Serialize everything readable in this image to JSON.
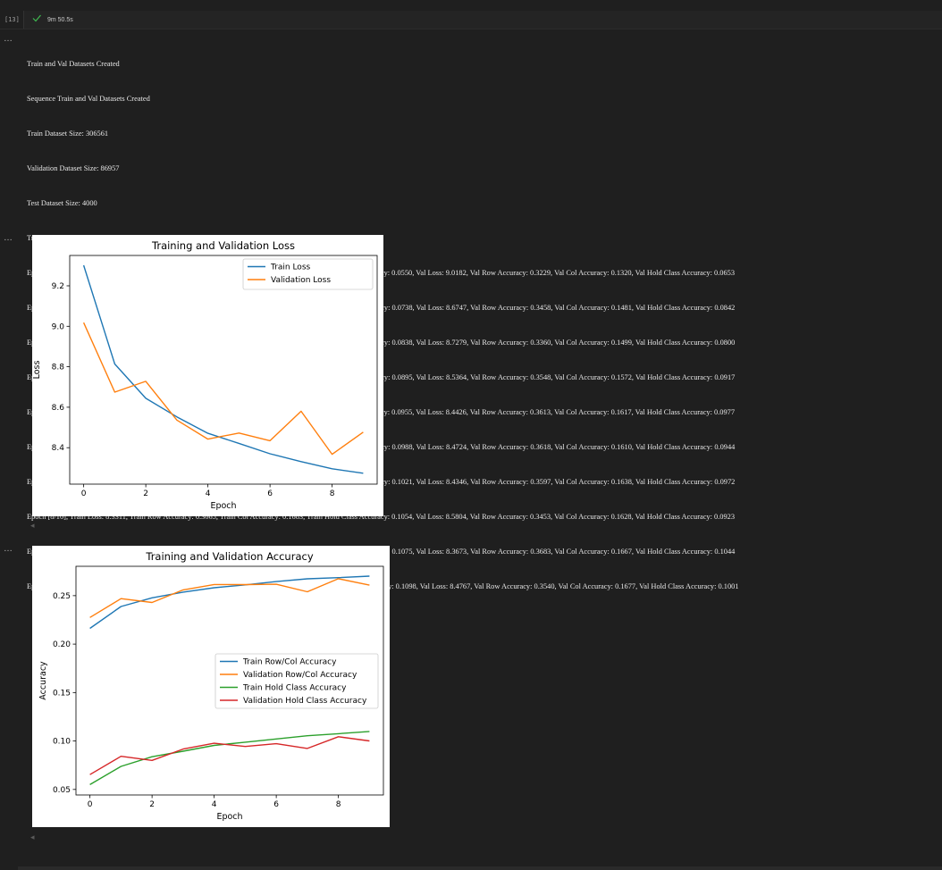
{
  "cell": {
    "execution_count": "[13]",
    "exec_time": "9m 50.5s"
  },
  "log_lines": [
    "Train and Val Datasets Created",
    "Sequence Train and Val Datasets Created",
    "Train Dataset Size: 306561",
    "Validation Dataset Size: 86957",
    "Test Dataset Size: 4000",
    "Train and Val Loaders Created",
    "Epoch [1/10], Train Loss: 9.3014, Train Row Accuracy: 0.3166, Train Col Accuracy: 0.1159, Train Hold Class Accuracy: 0.0550, Val Loss: 9.0182, Val Row Accuracy: 0.3229, Val Col Accuracy: 0.1320, Val Hold Class Accuracy: 0.0653",
    "Epoch [2/10], Train Loss: 8.8139, Train Row Accuracy: 0.3382, Train Col Accuracy: 0.1394, Train Hold Class Accuracy: 0.0738, Val Loss: 8.6747, Val Row Accuracy: 0.3458, Val Col Accuracy: 0.1481, Val Hold Class Accuracy: 0.0842",
    "Epoch [3/10], Train Loss: 8.6442, Train Row Accuracy: 0.3479, Train Col Accuracy: 0.1477, Train Hold Class Accuracy: 0.0838, Val Loss: 8.7279, Val Row Accuracy: 0.3360, Val Col Accuracy: 0.1499, Val Hold Class Accuracy: 0.0800",
    "Epoch [4/10], Train Loss: 8.5523, Train Row Accuracy: 0.3525, Train Col Accuracy: 0.1549, Train Hold Class Accuracy: 0.0895, Val Loss: 8.5364, Val Row Accuracy: 0.3548, Val Col Accuracy: 0.1572, Val Hold Class Accuracy: 0.0917",
    "Epoch [5/10], Train Loss: 8.4711, Train Row Accuracy: 0.3573, Train Col Accuracy: 0.1591, Train Hold Class Accuracy: 0.0955, Val Loss: 8.4426, Val Row Accuracy: 0.3613, Val Col Accuracy: 0.1617, Val Hold Class Accuracy: 0.0977",
    "Epoch [6/10], Train Loss: 8.4214, Train Row Accuracy: 0.3604, Train Col Accuracy: 0.1619, Train Hold Class Accuracy: 0.0988, Val Loss: 8.4724, Val Row Accuracy: 0.3618, Val Col Accuracy: 0.1610, Val Hold Class Accuracy: 0.0944",
    "Epoch [7/10], Train Loss: 8.3701, Train Row Accuracy: 0.3630, Train Col Accuracy: 0.1660, Train Hold Class Accuracy: 0.1021, Val Loss: 8.4346, Val Row Accuracy: 0.3597, Val Col Accuracy: 0.1638, Val Hold Class Accuracy: 0.0972",
    "Epoch [8/10], Train Loss: 8.3311, Train Row Accuracy: 0.3665, Train Col Accuracy: 0.1683, Train Hold Class Accuracy: 0.1054, Val Loss: 8.5804, Val Row Accuracy: 0.3453, Val Col Accuracy: 0.1628, Val Hold Class Accuracy: 0.0923",
    "Epoch [9/10], Train Loss: 8.2959, Train Row Accuracy: 0.3674, Train Col Accuracy: 0.1698, Train Hold Class Accuracy: 0.1075, Val Loss: 8.3673, Val Row Accuracy: 0.3683, Val Col Accuracy: 0.1667, Val Hold Class Accuracy: 0.1044",
    "Epoch [10/10], Train Loss: 8.2738, Train Row Accuracy: 0.3694, Train Col Accuracy: 0.1709, Train Hold Class Accuracy: 0.1098, Val Loss: 8.4767, Val Row Accuracy: 0.3540, Val Col Accuracy: 0.1677, Val Hold Class Accuracy: 0.1001"
  ],
  "icons": {
    "more": "…",
    "check": "check-icon",
    "scroll_left": "◂"
  },
  "colors": {
    "blue": "#1f77b4",
    "orange": "#ff7f0e",
    "green": "#2ca02c",
    "red": "#d62728",
    "success": "#3fb950"
  },
  "chart_data": [
    {
      "type": "line",
      "title": "Training and Validation Loss",
      "xlabel": "Epoch",
      "ylabel": "Loss",
      "x": [
        0,
        1,
        2,
        3,
        4,
        5,
        6,
        7,
        8,
        9
      ],
      "xticks": [
        0,
        2,
        4,
        6,
        8
      ],
      "yticks": [
        8.4,
        8.6,
        8.8,
        9.0,
        9.2
      ],
      "ytick_labels": [
        "8.4",
        "8.6",
        "8.8",
        "9.0",
        "9.2"
      ],
      "xlim": [
        -0.45,
        9.45
      ],
      "ylim": [
        8.22,
        9.35
      ],
      "legend": "top-right",
      "series": [
        {
          "name": "Train Loss",
          "color": "#1f77b4",
          "values": [
            9.3014,
            8.8139,
            8.6442,
            8.5523,
            8.4711,
            8.4214,
            8.3701,
            8.3311,
            8.2959,
            8.2738
          ]
        },
        {
          "name": "Validation Loss",
          "color": "#ff7f0e",
          "values": [
            9.0182,
            8.6747,
            8.7279,
            8.5364,
            8.4426,
            8.4724,
            8.4346,
            8.5804,
            8.3673,
            8.4767
          ]
        }
      ]
    },
    {
      "type": "line",
      "title": "Training and Validation Accuracy",
      "xlabel": "Epoch",
      "ylabel": "Accuracy",
      "x": [
        0,
        1,
        2,
        3,
        4,
        5,
        6,
        7,
        8,
        9
      ],
      "xticks": [
        0,
        2,
        4,
        6,
        8
      ],
      "yticks": [
        0.05,
        0.1,
        0.15,
        0.2,
        0.25
      ],
      "ytick_labels": [
        "0.05",
        "0.10",
        "0.15",
        "0.20",
        "0.25"
      ],
      "xlim": [
        -0.45,
        9.45
      ],
      "ylim": [
        0.0443,
        0.2803
      ],
      "legend": "center-right",
      "series": [
        {
          "name": "Train Row/Col Accuracy",
          "color": "#1f77b4",
          "values": [
            0.21625,
            0.2388,
            0.2478,
            0.2537,
            0.2582,
            0.26115,
            0.2645,
            0.2674,
            0.2686,
            0.27015
          ]
        },
        {
          "name": "Validation Row/Col Accuracy",
          "color": "#ff7f0e",
          "values": [
            0.22745,
            0.24695,
            0.24295,
            0.256,
            0.2615,
            0.2614,
            0.26175,
            0.25405,
            0.2675,
            0.26085
          ]
        },
        {
          "name": "Train Hold Class Accuracy",
          "color": "#2ca02c",
          "values": [
            0.055,
            0.0738,
            0.0838,
            0.0895,
            0.0955,
            0.0988,
            0.1021,
            0.1054,
            0.1075,
            0.1098
          ]
        },
        {
          "name": "Validation Hold Class Accuracy",
          "color": "#d62728",
          "values": [
            0.0653,
            0.0842,
            0.08,
            0.0917,
            0.0977,
            0.0944,
            0.0972,
            0.0923,
            0.1044,
            0.1001
          ]
        }
      ]
    }
  ]
}
